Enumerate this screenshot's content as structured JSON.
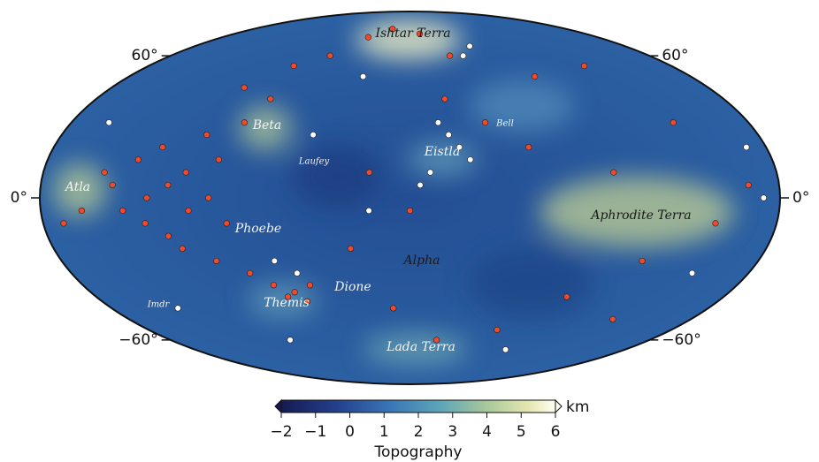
{
  "map": {
    "regions": [
      "Ishtar Terra",
      "Beta",
      "Laufey",
      "Eistla",
      "Bell",
      "Atla",
      "Phoebe",
      "Aphrodite Terra",
      "Alpha",
      "Dione",
      "Themis",
      "Imdr",
      "Lada Terra"
    ],
    "lat_labels": [
      {
        "value": 60,
        "label": "60°"
      },
      {
        "value": 0,
        "label": "0°"
      },
      {
        "value": -60,
        "label": "−60°"
      }
    ],
    "red_sites": [
      [
        -150,
        10
      ],
      [
        -145,
        5
      ],
      [
        -140,
        -5
      ],
      [
        -135,
        15
      ],
      [
        -130,
        -10
      ],
      [
        -128,
        0
      ],
      [
        -125,
        20
      ],
      [
        -120,
        -15
      ],
      [
        -118,
        5
      ],
      [
        -115,
        -20
      ],
      [
        -110,
        10
      ],
      [
        -108,
        -5
      ],
      [
        -105,
        25
      ],
      [
        -100,
        -25
      ],
      [
        -98,
        0
      ],
      [
        -95,
        15
      ],
      [
        -90,
        -10
      ],
      [
        -88,
        30
      ],
      [
        -85,
        -30
      ],
      [
        -80,
        40
      ],
      [
        -75,
        -35
      ],
      [
        -70,
        -40
      ],
      [
        -65,
        -38
      ],
      [
        -60,
        -42
      ],
      [
        -55,
        -35
      ],
      [
        -100,
        45
      ],
      [
        -80,
        55
      ],
      [
        -60,
        60
      ],
      [
        -40,
        70
      ],
      [
        -20,
        75
      ],
      [
        10,
        72
      ],
      [
        30,
        60
      ],
      [
        20,
        40
      ],
      [
        40,
        30
      ],
      [
        60,
        20
      ],
      [
        80,
        50
      ],
      [
        120,
        55
      ],
      [
        140,
        30
      ],
      [
        150,
        -10
      ],
      [
        165,
        5
      ],
      [
        120,
        -25
      ],
      [
        90,
        -40
      ],
      [
        60,
        -55
      ],
      [
        20,
        -60
      ],
      [
        -10,
        -45
      ],
      [
        -30,
        -20
      ],
      [
        -20,
        10
      ],
      [
        0,
        -5
      ],
      [
        100,
        10
      ],
      [
        130,
        -50
      ],
      [
        -160,
        -5
      ],
      [
        -170,
        -10
      ]
    ],
    "white_sites": [
      [
        15,
        30
      ],
      [
        20,
        25
      ],
      [
        25,
        20
      ],
      [
        30,
        15
      ],
      [
        10,
        10
      ],
      [
        -50,
        25
      ],
      [
        -60,
        -30
      ],
      [
        -70,
        -25
      ],
      [
        -30,
        50
      ],
      [
        40,
        60
      ],
      [
        170,
        20
      ],
      [
        172,
        0
      ],
      [
        150,
        -30
      ],
      [
        -140,
        -45
      ],
      [
        -20,
        -5
      ],
      [
        5,
        5
      ],
      [
        80,
        -65
      ],
      [
        50,
        65
      ],
      [
        -160,
        30
      ],
      [
        -90,
        -60
      ]
    ],
    "red_color": "#ef4a2c",
    "white_color": "#ffffff"
  },
  "colorbar": {
    "range": [
      -2,
      6
    ],
    "unit": "km",
    "title": "Topography",
    "ticks": [
      {
        "value": -2,
        "label": "−2"
      },
      {
        "value": -1,
        "label": "−1"
      },
      0,
      1,
      2,
      3,
      4,
      5,
      6
    ]
  }
}
